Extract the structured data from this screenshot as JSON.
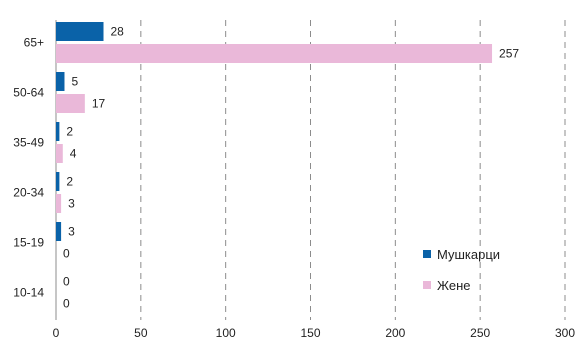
{
  "chart_data": {
    "type": "bar",
    "orientation": "horizontal",
    "categories": [
      "65+",
      "50-64",
      "35-49",
      "20-34",
      "15-19",
      "10-14"
    ],
    "series": [
      {
        "name": "Мушкарци",
        "color": "#0a62a8",
        "values": [
          28,
          5,
          2,
          2,
          3,
          0
        ]
      },
      {
        "name": "Жене",
        "color": "#eab8d9",
        "values": [
          257,
          17,
          4,
          3,
          0,
          0
        ]
      }
    ],
    "xlim": [
      0,
      300
    ],
    "x_ticks": [
      0,
      50,
      100,
      150,
      200,
      250,
      300
    ],
    "grid": "vertical dashed",
    "legend_placement": "bottom-right",
    "data_labels": true
  }
}
